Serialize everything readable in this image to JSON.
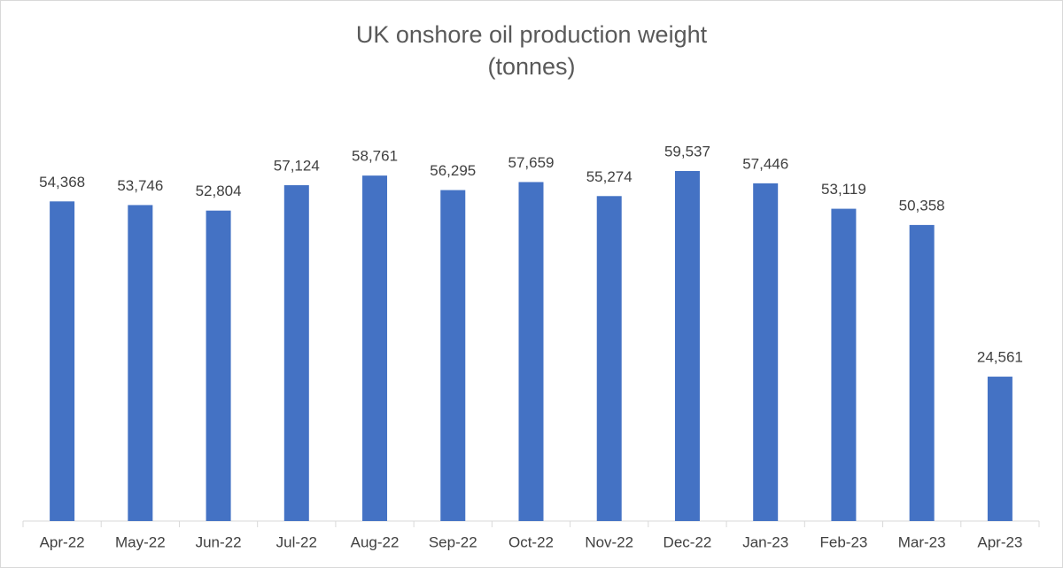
{
  "chart_data": {
    "type": "bar",
    "title": "UK onshore oil production weight",
    "subtitle": "(tonnes)",
    "categories": [
      "Apr-22",
      "May-22",
      "Jun-22",
      "Jul-22",
      "Aug-22",
      "Sep-22",
      "Oct-22",
      "Nov-22",
      "Dec-22",
      "Jan-23",
      "Feb-23",
      "Mar-23",
      "Apr-23"
    ],
    "values": [
      54368,
      53746,
      52804,
      57124,
      58761,
      56295,
      57659,
      55274,
      59537,
      57446,
      53119,
      50358,
      24561
    ],
    "value_labels": [
      "54,368",
      "53,746",
      "52,804",
      "57,124",
      "58,761",
      "56,295",
      "57,659",
      "55,274",
      "59,537",
      "57,446",
      "53,119",
      "50,358",
      "24,561"
    ],
    "color": "#4472c4"
  }
}
